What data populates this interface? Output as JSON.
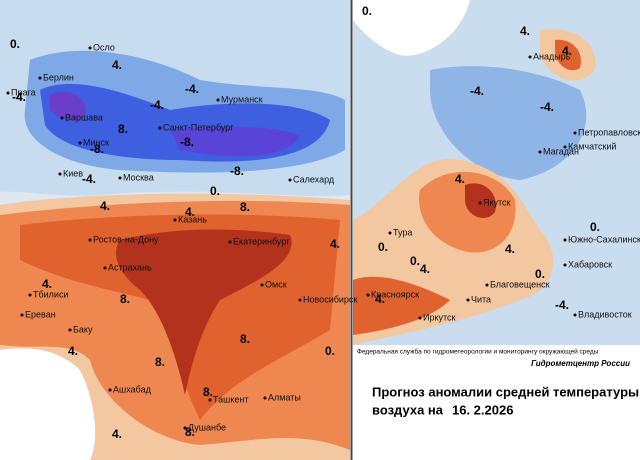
{
  "left_map": {
    "cities": [
      "Осло",
      "Берлин",
      "Прага",
      "Варшава",
      "Мурманск",
      "Санкт-Петербург",
      "Минск",
      "Киев",
      "Москва",
      "Салехард",
      "Казань",
      "Ростов-на-Дону",
      "Екатеринбург",
      "Астрахань",
      "Тбилиси",
      "Омск",
      "Новосибирск",
      "Ереван",
      "Баку",
      "Ашхабад",
      "Ташкент",
      "Алматы",
      "Душанбе"
    ],
    "contour_labels": [
      "0.",
      "-4.",
      "4.",
      "-4.",
      "-4.",
      "8.",
      "-8.",
      "-8.",
      "-8.",
      "-4.",
      "0.",
      "4.",
      "4.",
      "8.",
      "4.",
      "4.",
      "8.",
      "8.",
      "8.",
      "8.",
      "4.",
      "4.",
      "8.",
      "0."
    ]
  },
  "right_map": {
    "cities": [
      "Анадырь",
      "Петропавловск",
      "Камчатский",
      "Магадан",
      "Якутск",
      "Тура",
      "Южно-Сахалинск",
      "Хабаровск",
      "Благовещенск",
      "Красноярск",
      "Чита",
      "Иркутск",
      "Владивосток"
    ],
    "contour_labels": [
      "0.",
      "4.",
      "4.",
      "-4.",
      "-4.",
      "4.",
      "0.",
      "0.",
      "4.",
      "4.",
      "0.",
      "0.",
      "4.",
      "-4."
    ]
  },
  "footer": {
    "agency": "Федеральная служба по гидрометеорологии и мониторингу окружающей среды",
    "center": "Гидрометцентр России",
    "title_line1": "Прогноз аномалии средней температуры",
    "title_line2": "воздуха на",
    "date": "16. 2.2026"
  }
}
